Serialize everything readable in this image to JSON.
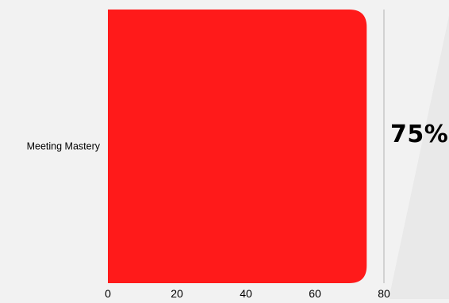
{
  "chart_data": {
    "type": "bar",
    "orientation": "horizontal",
    "categories": [
      "Meeting Mastery"
    ],
    "values": [
      75
    ],
    "xlim": [
      0,
      80
    ],
    "xticks": [
      "0",
      "20",
      "40",
      "60",
      "80"
    ],
    "grid": false
  },
  "summary": {
    "value_label": "75%"
  },
  "colors": {
    "bar": "#ff1a1a",
    "background": "#f2f2f2",
    "axis_line": "#c8c8c8",
    "text": "#000000"
  }
}
